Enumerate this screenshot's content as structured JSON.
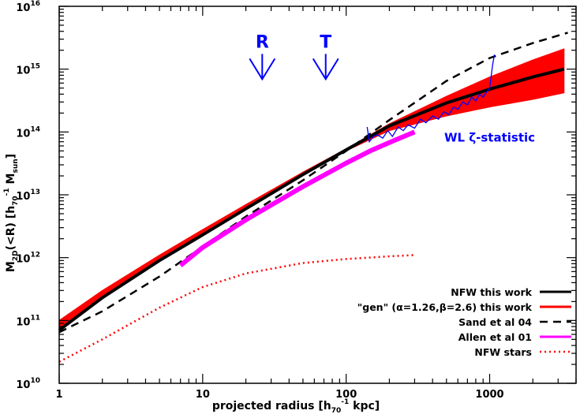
{
  "chart_data": {
    "type": "line",
    "xscale": "log",
    "yscale": "log",
    "xlim": [
      1,
      4000
    ],
    "ylim": [
      10000000000.0,
      1e+16
    ],
    "xlabel": "projected radius  [h",
    "xlabel_sub": "70",
    "xlabel_sup": "-1",
    "xlabel_end": " kpc]",
    "ylabel": "M",
    "ylabel_sub": "2D",
    "ylabel_mid": "(<R)  [h",
    "ylabel_sub2": "70",
    "ylabel_sup": "-1",
    "ylabel_mid2": " M",
    "ylabel_sub3": "sun",
    "ylabel_end": "]",
    "x_ticks": [
      1,
      10,
      100,
      1000
    ],
    "x_tick_labels": [
      "1",
      "10",
      "100",
      "1000"
    ],
    "y_ticks": [
      10000000000.0,
      100000000000.0,
      1000000000000.0,
      10000000000000.0,
      100000000000000.0,
      1000000000000000.0,
      1e+16
    ],
    "y_tick_base": "10",
    "y_tick_exps": [
      "10",
      "11",
      "12",
      "13",
      "14",
      "15",
      "16"
    ],
    "annotations": [
      {
        "text": "R",
        "x": 26,
        "y": 2200000000000000.0,
        "color": "#0000ff"
      },
      {
        "text": "T",
        "x": 72,
        "y": 2200000000000000.0,
        "color": "#0000ff"
      },
      {
        "text": "WL ζ-statistic",
        "x": 1000,
        "y": 70000000000000.0,
        "color": "#0000ff"
      }
    ],
    "legend_position": "bottom-right",
    "series": [
      {
        "name": "NFW this work",
        "style": "solid-thick",
        "color": "#000000",
        "x": [
          1,
          2,
          5,
          10,
          20,
          50,
          100,
          200,
          500,
          1000,
          2000,
          3300
        ],
        "y": [
          70000000000.0,
          230000000000.0,
          900000000000.0,
          2300000000000.0,
          6000000000000.0,
          21000000000000.0,
          52000000000000.0,
          125000000000000.0,
          290000000000000.0,
          480000000000000.0,
          750000000000000.0,
          1000000000000000.0
        ]
      },
      {
        "name": "\"gen\" (α=1.26,β=2.6) this work",
        "style": "band",
        "color": "#ff0000",
        "x": [
          1,
          2,
          5,
          10,
          20,
          50,
          100,
          200,
          500,
          1000,
          2000,
          3300
        ],
        "y_low": [
          75000000000.0,
          250000000000.0,
          950000000000.0,
          2400000000000.0,
          6500000000000.0,
          21000000000000.0,
          50000000000000.0,
          105000000000000.0,
          180000000000000.0,
          250000000000000.0,
          330000000000000.0,
          420000000000000.0
        ],
        "y_high": [
          100000000000.0,
          300000000000.0,
          1100000000000.0,
          2800000000000.0,
          7000000000000.0,
          23000000000000.0,
          54000000000000.0,
          135000000000000.0,
          370000000000000.0,
          750000000000000.0,
          1400000000000000.0,
          2100000000000000.0
        ]
      },
      {
        "name": "Sand et al 04",
        "style": "dashed",
        "color": "#000000",
        "x": [
          1,
          2,
          5,
          10,
          20,
          50,
          100,
          200,
          500,
          1000,
          2000,
          3500
        ],
        "y": [
          65000000000.0,
          140000000000.0,
          500000000000.0,
          1500000000000.0,
          4500000000000.0,
          17000000000000.0,
          50000000000000.0,
          155000000000000.0,
          650000000000000.0,
          1500000000000000.0,
          2600000000000000.0,
          3800000000000000.0
        ]
      },
      {
        "name": "Allen et al 01",
        "style": "solid-thick",
        "color": "#ff00ff",
        "x": [
          7,
          10,
          20,
          50,
          100,
          150,
          200,
          300
        ],
        "y": [
          750000000000.0,
          1450000000000.0,
          4000000000000.0,
          13500000000000.0,
          32000000000000.0,
          51000000000000.0,
          68000000000000.0,
          100000000000000.0
        ]
      },
      {
        "name": "NFW stars",
        "style": "dotted",
        "color": "#ff0000",
        "x": [
          1,
          2,
          5,
          10,
          20,
          50,
          100,
          200,
          300
        ],
        "y": [
          22000000000.0,
          50000000000.0,
          160000000000.0,
          340000000000.0,
          560000000000.0,
          820000000000.0,
          950000000000.0,
          1050000000000.0,
          1100000000000.0
        ]
      },
      {
        "name": "",
        "style": "thin",
        "color": "#0000ff",
        "x": [
          140,
          145,
          155,
          165,
          180,
          195,
          210,
          230,
          250,
          270,
          300,
          330,
          360,
          400,
          440,
          480,
          520,
          560,
          600,
          650,
          700,
          750,
          800,
          850,
          900,
          950,
          1000,
          1050,
          1080
        ],
        "y": [
          120000000000000.0,
          70000000000000.0,
          85000000000000.0,
          90000000000000.0,
          80000000000000.0,
          105000000000000.0,
          85000000000000.0,
          120000000000000.0,
          105000000000000.0,
          130000000000000.0,
          115000000000000.0,
          160000000000000.0,
          140000000000000.0,
          180000000000000.0,
          160000000000000.0,
          210000000000000.0,
          190000000000000.0,
          250000000000000.0,
          230000000000000.0,
          300000000000000.0,
          270000000000000.0,
          360000000000000.0,
          310000000000000.0,
          400000000000000.0,
          360000000000000.0,
          430000000000000.0,
          500000000000000.0,
          1200000000000000.0,
          1700000000000000.0
        ]
      }
    ]
  }
}
